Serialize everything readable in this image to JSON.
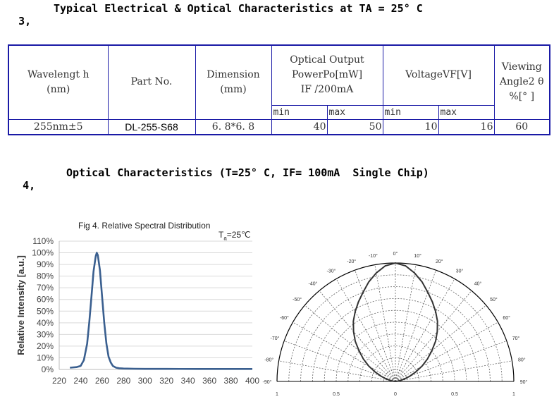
{
  "section3": {
    "number": "3,",
    "title": "Typical Electrical & Optical Characteristics at TA = 25° C"
  },
  "table": {
    "headers": {
      "wavelength": [
        "Wavelengt h",
        "(nm)"
      ],
      "part_no": "Part No.",
      "dimension": [
        "Dimension",
        "(mm)"
      ],
      "optical_output": [
        "Optical Output",
        "PowerPo[mW]",
        "IF /200mA"
      ],
      "voltage": "VoltageVF[V]",
      "viewing_angle": [
        "Viewing",
        "Angle2 θ",
        "%[° ]"
      ]
    },
    "sub_headers": {
      "min1": "min",
      "max1": "max",
      "min2": "min",
      "max2": "max"
    },
    "row": {
      "wavelength": "255nm±5",
      "part_no": "DL-255-S68",
      "dimension": "6. 8*6. 8",
      "po_min": "40",
      "po_max": "50",
      "vf_min": "10",
      "vf_max": "16",
      "viewing_angle": "60"
    }
  },
  "section4": {
    "number": "4,",
    "title": "Optical Characteristics (T=25° C, IF= 100mA  Single Chip)"
  },
  "chart_data": [
    {
      "type": "line",
      "title": "Fig 4. Relative Spectral Distribution",
      "annotation": {
        "prefix": "T",
        "sub": "a",
        "suffix": "=25℃"
      },
      "ylabel": "Relative Intensity [a.u.]",
      "xlabel": "",
      "xlim": [
        220,
        400
      ],
      "ylim": [
        0,
        110
      ],
      "xticks": [
        "220",
        "240",
        "260",
        "280",
        "300",
        "320",
        "340",
        "360",
        "380",
        "400"
      ],
      "yticks": [
        "0%",
        "10%",
        "20%",
        "30%",
        "40%",
        "50%",
        "60%",
        "70%",
        "80%",
        "90%",
        "100%",
        "110%"
      ],
      "grid": "horizontal",
      "series": [
        {
          "color": "#3a5f8f",
          "x": [
            230,
            236,
            240,
            243,
            246,
            248,
            250,
            252,
            254,
            255,
            256,
            258,
            260,
            262,
            264,
            266,
            268,
            270,
            273,
            276,
            280,
            290,
            300,
            320,
            350,
            380,
            400
          ],
          "y": [
            1.5,
            2,
            3,
            8,
            22,
            40,
            62,
            84,
            97,
            100,
            98,
            85,
            62,
            40,
            22,
            11,
            6,
            3,
            1.5,
            1,
            0.8,
            0.6,
            0.5,
            0.5,
            0.4,
            0.4,
            0.4
          ]
        }
      ]
    },
    {
      "type": "polar",
      "angle_labels": [
        "-90°",
        "-80°",
        "-70°",
        "-60°",
        "-50°",
        "-40°",
        "-30°",
        "-20°",
        "-10°",
        "0°",
        "10°",
        "20°",
        "30°",
        "40°",
        "50°",
        "60°",
        "70°",
        "80°",
        "90°"
      ],
      "radial_labels": [
        "1",
        "0.5",
        "0",
        "0.5",
        "1"
      ],
      "series": [
        {
          "angles": [
            0,
            5,
            10,
            15,
            20,
            25,
            30,
            35,
            40,
            45,
            50,
            55,
            60,
            65,
            70,
            75,
            80,
            85,
            90
          ],
          "values": [
            1.0,
            0.98,
            0.93,
            0.87,
            0.8,
            0.74,
            0.68,
            0.62,
            0.55,
            0.48,
            0.4,
            0.33,
            0.26,
            0.19,
            0.13,
            0.08,
            0.04,
            0.015,
            0.0
          ]
        }
      ]
    }
  ]
}
